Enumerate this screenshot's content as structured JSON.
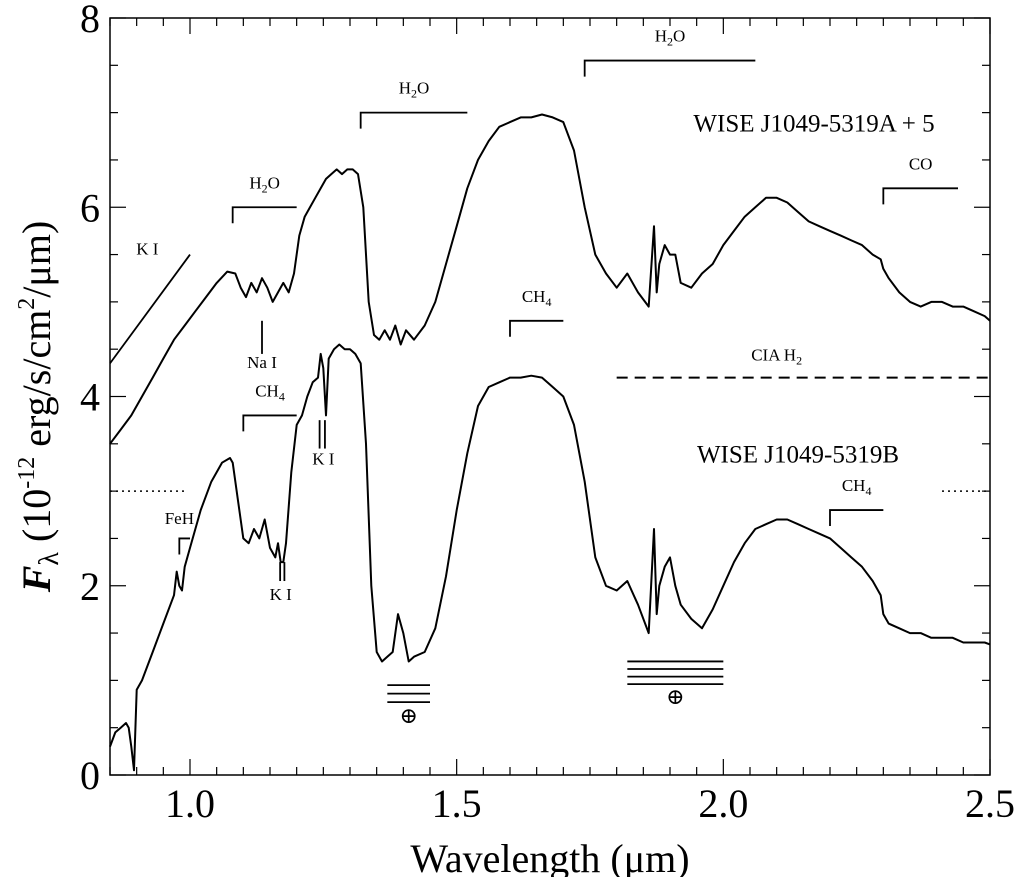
{
  "chart_data": {
    "type": "line",
    "title": "",
    "xlabel": "Wavelength (μm)",
    "ylabel": {
      "symbol": "F",
      "sub": "λ",
      "open": " (10",
      "exp": "-12",
      "units": " erg/s/cm",
      "exp2": "2",
      "close": "/μm)"
    },
    "xlim": [
      0.85,
      2.5
    ],
    "ylim": [
      0,
      8
    ],
    "x_ticks": [
      {
        "value": 1.0,
        "label": "1.0"
      },
      {
        "value": 1.5,
        "label": "1.5"
      },
      {
        "value": 2.0,
        "label": "2.0"
      },
      {
        "value": 2.5,
        "label": "2.5"
      }
    ],
    "y_ticks": [
      {
        "value": 0,
        "label": "0"
      },
      {
        "value": 2,
        "label": "2"
      },
      {
        "value": 4,
        "label": "4"
      },
      {
        "value": 6,
        "label": "6"
      },
      {
        "value": 8,
        "label": "8"
      }
    ],
    "series": [
      {
        "name": "WISE J1049-5319A + 5",
        "label_at": [
          2.17,
          6.8
        ],
        "x": [
          0.85,
          0.87,
          0.89,
          0.91,
          0.93,
          0.95,
          0.97,
          0.99,
          1.01,
          1.03,
          1.05,
          1.07,
          1.085,
          1.095,
          1.105,
          1.115,
          1.125,
          1.135,
          1.145,
          1.155,
          1.165,
          1.175,
          1.185,
          1.195,
          1.205,
          1.215,
          1.225,
          1.235,
          1.245,
          1.255,
          1.265,
          1.275,
          1.285,
          1.295,
          1.305,
          1.315,
          1.325,
          1.335,
          1.345,
          1.355,
          1.365,
          1.375,
          1.385,
          1.395,
          1.405,
          1.42,
          1.44,
          1.46,
          1.48,
          1.5,
          1.52,
          1.54,
          1.56,
          1.58,
          1.6,
          1.62,
          1.64,
          1.66,
          1.68,
          1.7,
          1.72,
          1.74,
          1.76,
          1.78,
          1.8,
          1.82,
          1.84,
          1.86,
          1.87,
          1.875,
          1.88,
          1.89,
          1.9,
          1.91,
          1.92,
          1.94,
          1.96,
          1.98,
          2.0,
          2.02,
          2.04,
          2.06,
          2.08,
          2.1,
          2.12,
          2.14,
          2.16,
          2.18,
          2.2,
          2.22,
          2.24,
          2.26,
          2.28,
          2.295,
          2.3,
          2.31,
          2.33,
          2.35,
          2.37,
          2.39,
          2.41,
          2.43,
          2.45,
          2.47,
          2.49,
          2.5
        ],
        "y": [
          3.5,
          3.65,
          3.8,
          4.0,
          4.2,
          4.4,
          4.6,
          4.75,
          4.9,
          5.05,
          5.2,
          5.32,
          5.3,
          5.15,
          5.05,
          5.2,
          5.1,
          5.25,
          5.15,
          5.0,
          5.1,
          5.2,
          5.1,
          5.3,
          5.7,
          5.9,
          6.0,
          6.1,
          6.2,
          6.3,
          6.35,
          6.4,
          6.35,
          6.4,
          6.4,
          6.35,
          6.0,
          5.0,
          4.65,
          4.6,
          4.7,
          4.6,
          4.75,
          4.55,
          4.7,
          4.6,
          4.75,
          5.0,
          5.4,
          5.8,
          6.2,
          6.5,
          6.7,
          6.85,
          6.9,
          6.95,
          6.95,
          6.98,
          6.95,
          6.9,
          6.6,
          6.0,
          5.5,
          5.3,
          5.15,
          5.3,
          5.1,
          4.95,
          5.8,
          5.1,
          5.4,
          5.6,
          5.5,
          5.5,
          5.2,
          5.15,
          5.3,
          5.4,
          5.6,
          5.75,
          5.9,
          6.0,
          6.1,
          6.1,
          6.05,
          5.95,
          5.85,
          5.8,
          5.75,
          5.7,
          5.65,
          5.6,
          5.5,
          5.45,
          5.35,
          5.25,
          5.1,
          5.0,
          4.95,
          5.0,
          5.0,
          4.95,
          4.95,
          4.9,
          4.85,
          4.8
        ]
      },
      {
        "name": "WISE J1049-5319B",
        "label_at": [
          2.14,
          3.3
        ],
        "x": [
          0.85,
          0.86,
          0.87,
          0.88,
          0.885,
          0.89,
          0.895,
          0.9,
          0.91,
          0.93,
          0.95,
          0.97,
          0.975,
          0.98,
          0.985,
          0.99,
          1.0,
          1.02,
          1.04,
          1.06,
          1.075,
          1.08,
          1.09,
          1.1,
          1.11,
          1.12,
          1.13,
          1.14,
          1.15,
          1.16,
          1.165,
          1.17,
          1.175,
          1.18,
          1.19,
          1.2,
          1.21,
          1.22,
          1.23,
          1.24,
          1.245,
          1.25,
          1.255,
          1.26,
          1.27,
          1.28,
          1.29,
          1.3,
          1.31,
          1.32,
          1.33,
          1.34,
          1.35,
          1.36,
          1.37,
          1.38,
          1.39,
          1.4,
          1.41,
          1.42,
          1.44,
          1.46,
          1.48,
          1.5,
          1.52,
          1.54,
          1.56,
          1.58,
          1.6,
          1.62,
          1.64,
          1.66,
          1.68,
          1.7,
          1.72,
          1.74,
          1.76,
          1.78,
          1.8,
          1.82,
          1.84,
          1.86,
          1.87,
          1.875,
          1.88,
          1.89,
          1.9,
          1.91,
          1.92,
          1.94,
          1.96,
          1.98,
          2.0,
          2.02,
          2.04,
          2.06,
          2.08,
          2.1,
          2.12,
          2.14,
          2.16,
          2.18,
          2.2,
          2.22,
          2.24,
          2.26,
          2.28,
          2.295,
          2.3,
          2.31,
          2.33,
          2.35,
          2.37,
          2.39,
          2.41,
          2.43,
          2.45,
          2.47,
          2.49,
          2.5
        ],
        "y": [
          0.3,
          0.45,
          0.5,
          0.55,
          0.5,
          0.3,
          0.05,
          0.9,
          1.0,
          1.3,
          1.6,
          1.9,
          2.15,
          2.0,
          1.95,
          2.2,
          2.4,
          2.8,
          3.1,
          3.3,
          3.35,
          3.3,
          2.9,
          2.5,
          2.45,
          2.6,
          2.5,
          2.7,
          2.4,
          2.3,
          2.45,
          2.25,
          2.25,
          2.45,
          3.2,
          3.7,
          3.8,
          4.0,
          4.15,
          4.2,
          4.45,
          4.3,
          3.8,
          4.4,
          4.5,
          4.55,
          4.5,
          4.5,
          4.45,
          4.35,
          3.5,
          2.0,
          1.3,
          1.2,
          1.25,
          1.3,
          1.7,
          1.5,
          1.2,
          1.25,
          1.3,
          1.55,
          2.1,
          2.8,
          3.4,
          3.9,
          4.1,
          4.15,
          4.2,
          4.2,
          4.22,
          4.2,
          4.1,
          4.0,
          3.7,
          3.1,
          2.3,
          2.0,
          1.95,
          2.05,
          1.8,
          1.5,
          2.6,
          1.7,
          2.0,
          2.2,
          2.3,
          2.0,
          1.8,
          1.65,
          1.55,
          1.75,
          2.0,
          2.25,
          2.45,
          2.6,
          2.65,
          2.7,
          2.7,
          2.65,
          2.6,
          2.55,
          2.5,
          2.4,
          2.3,
          2.2,
          2.05,
          1.9,
          1.7,
          1.6,
          1.55,
          1.5,
          1.5,
          1.45,
          1.45,
          1.45,
          1.4,
          1.4,
          1.4,
          1.38
        ]
      }
    ],
    "annotations": {
      "brackets": [
        {
          "label": "H",
          "sub": "2",
          "tail": "O",
          "x1": 1.08,
          "x2": 1.2,
          "y": 6.0,
          "label_x": 1.14,
          "label_y": 6.2
        },
        {
          "label": "H",
          "sub": "2",
          "tail": "O",
          "x1": 1.32,
          "x2": 1.52,
          "y": 7.0,
          "label_x": 1.42,
          "label_y": 7.2
        },
        {
          "label": "H",
          "sub": "2",
          "tail": "O",
          "x1": 1.74,
          "x2": 2.06,
          "y": 7.55,
          "label_x": 1.9,
          "label_y": 7.75
        },
        {
          "label": "CO",
          "sub": "",
          "tail": "",
          "x1": 2.3,
          "x2": 2.44,
          "y": 6.2,
          "label_x": 2.37,
          "label_y": 6.4
        },
        {
          "label": "CH",
          "sub": "4",
          "tail": "",
          "x1": 1.1,
          "x2": 1.2,
          "y": 3.8,
          "label_x": 1.15,
          "label_y": 4.0
        },
        {
          "label": "CH",
          "sub": "4",
          "tail": "",
          "x1": 1.6,
          "x2": 1.7,
          "y": 4.8,
          "label_x": 1.65,
          "label_y": 5.0
        },
        {
          "label": "CH",
          "sub": "4",
          "tail": "",
          "x1": 2.2,
          "x2": 2.3,
          "y": 2.8,
          "label_x": 2.25,
          "label_y": 3.0
        },
        {
          "label": "FeH",
          "sub": "",
          "tail": "",
          "x1": 0.98,
          "x2": 1.0,
          "y": 2.5,
          "label_x": 0.98,
          "label_y": 2.65
        }
      ],
      "labels": [
        {
          "text": "K I",
          "x": 0.92,
          "y": 5.5
        },
        {
          "text": "Na I",
          "x": 1.135,
          "y": 4.3
        },
        {
          "text": "K I",
          "x": 1.17,
          "y": 1.85
        },
        {
          "text": "K I",
          "x": 1.25,
          "y": 3.28
        },
        {
          "text": "CIA H",
          "sub": "2",
          "x": 2.1,
          "y": 4.38
        }
      ],
      "ticks": [
        {
          "x": 1.135,
          "y1": 4.45,
          "y2": 4.8
        },
        {
          "x": 1.169,
          "y1": 2.05,
          "y2": 2.25
        },
        {
          "x": 1.177,
          "y1": 2.05,
          "y2": 2.25
        },
        {
          "x": 1.243,
          "y1": 3.45,
          "y2": 3.75
        },
        {
          "x": 1.253,
          "y1": 3.45,
          "y2": 3.75
        }
      ],
      "diagonal": {
        "x1": 0.85,
        "y1": 4.35,
        "x2": 1.0,
        "y2": 5.5
      },
      "dashed": {
        "x1": 1.8,
        "x2": 2.5,
        "y": 4.2
      },
      "dotted": [
        {
          "x1": 0.85,
          "x2": 0.99,
          "y": 3.0
        },
        {
          "x1": 2.41,
          "x2": 2.5,
          "y": 3.0
        }
      ],
      "telluric": [
        {
          "symbol": "⊕",
          "x1": 1.37,
          "x2": 1.45,
          "y_lines": [
            0.95,
            0.86,
            0.77
          ],
          "symbol_x": 1.41,
          "symbol_y": 0.55
        },
        {
          "symbol": "⊕",
          "x1": 1.82,
          "x2": 2.0,
          "y_lines": [
            1.2,
            1.12,
            1.04,
            0.96
          ],
          "symbol_x": 1.91,
          "symbol_y": 0.75
        }
      ]
    },
    "grid": false,
    "legend": "none"
  }
}
